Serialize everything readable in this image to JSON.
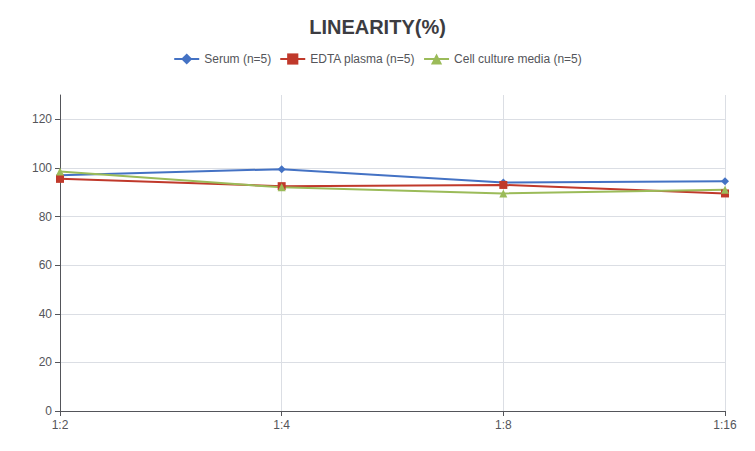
{
  "chart_data": {
    "type": "line",
    "title": "LINEARITY(%)",
    "categories": [
      "1:2",
      "1:4",
      "1:8",
      "1:16"
    ],
    "series": [
      {
        "name": "Serum (n=5)",
        "color": "#4472C4",
        "marker": "diamond",
        "values": [
          97.0,
          99.5,
          94.0,
          94.5
        ]
      },
      {
        "name": "EDTA plasma (n=5)",
        "color": "#C0392B",
        "marker": "square",
        "values": [
          95.5,
          92.5,
          93.0,
          89.5
        ]
      },
      {
        "name": "Cell culture media (n=5)",
        "color": "#9BBB59",
        "marker": "triangle",
        "values": [
          98.5,
          92.0,
          89.5,
          91.0
        ]
      }
    ],
    "ylim": [
      0,
      130
    ],
    "yticks": [
      0,
      20,
      40,
      60,
      80,
      100,
      120
    ],
    "grid": true,
    "legend": "top"
  }
}
